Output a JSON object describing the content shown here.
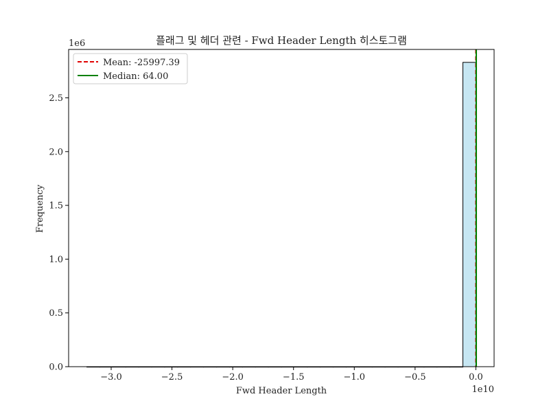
{
  "chart_data": {
    "type": "bar",
    "title": "플래그 및 헤더 관련 - Fwd Header Length 히스토그램",
    "xlabel": "Fwd Header Length",
    "ylabel": "Frequency",
    "x_offset_label": "1e10",
    "y_offset_label": "1e6",
    "xlim": [
      -3.35,
      0.15
    ],
    "ylim": [
      0,
      2.95
    ],
    "x_ticks": [
      -3.0,
      -2.5,
      -2.0,
      -1.5,
      -1.0,
      -0.5,
      0.0
    ],
    "x_tick_labels": [
      "−3.0",
      "−2.5",
      "−2.0",
      "−1.5",
      "−1.0",
      "−0.5",
      "0.0"
    ],
    "y_ticks": [
      0.0,
      0.5,
      1.0,
      1.5,
      2.0,
      2.5
    ],
    "y_tick_labels": [
      "0.0",
      "0.5",
      "1.0",
      "1.5",
      "2.0",
      "2.5"
    ],
    "bins": {
      "start": -3.2,
      "end": 0.0,
      "count": 30,
      "values": [
        0.0,
        0.0,
        0.0,
        0.0,
        0.0,
        0.0,
        0.0,
        0.0,
        0.0,
        0.0,
        0.0,
        0.0,
        0.0,
        0.0,
        0.0,
        0.0,
        0.0,
        0.0,
        0.0,
        0.0,
        0.0,
        0.0,
        0.0,
        0.0,
        0.0,
        0.0,
        0.0,
        0.0,
        0.0,
        2.83
      ]
    },
    "bar_fill": "#c6e6f2",
    "bar_edge": "#000000",
    "mean": {
      "value": -2.5997e-06,
      "label": "Mean: -25997.39",
      "color": "#e00000",
      "style": "dashed"
    },
    "median": {
      "value": 6.4e-09,
      "label": "Median: 64.00",
      "color": "#008000",
      "style": "solid"
    },
    "legend_position": "top-left",
    "grid": false
  }
}
